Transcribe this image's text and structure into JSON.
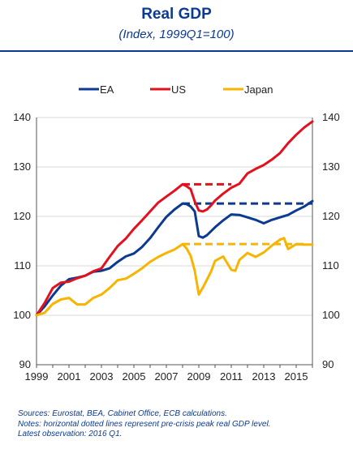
{
  "header": {
    "title": "Real GDP",
    "subtitle": "(Index, 1999Q1=100)"
  },
  "notes": [
    "Sources: Eurostat, BEA, Cabinet Office, ECB calculations.",
    "Notes: horizontal dotted lines represent pre-crisis peak real GDP level.",
    "Latest observation: 2016 Q1."
  ],
  "chart_data": {
    "type": "line",
    "xlim": [
      1999,
      2016.0
    ],
    "ylim": [
      90,
      140
    ],
    "xticks": [
      1999,
      2001,
      2003,
      2005,
      2007,
      2009,
      2011,
      2013,
      2015
    ],
    "yticks": [
      90,
      100,
      110,
      120,
      130,
      140
    ],
    "legend_placement": "top",
    "grid": "horizontal",
    "series": [
      {
        "name": "EA",
        "color": "#0b3a91",
        "x": [
          1999,
          1999.5,
          2000,
          2000.5,
          2001,
          2001.5,
          2002,
          2002.5,
          2003,
          2003.5,
          2004,
          2004.5,
          2005,
          2005.5,
          2006,
          2006.5,
          2007,
          2007.5,
          2008,
          2008.25,
          2008.5,
          2008.75,
          2009,
          2009.25,
          2009.5,
          2009.75,
          2010,
          2010.5,
          2011,
          2011.5,
          2012,
          2012.5,
          2013,
          2013.5,
          2014,
          2014.5,
          2015,
          2015.5,
          2016
        ],
        "y": [
          100,
          101.8,
          104,
          106,
          107.3,
          107.6,
          108,
          108.8,
          109,
          109.5,
          110.8,
          111.9,
          112.5,
          113.8,
          115.6,
          117.8,
          119.9,
          121.4,
          122.6,
          122.5,
          122,
          121,
          116,
          115.7,
          116.2,
          117,
          117.8,
          119.2,
          120.4,
          120.3,
          119.8,
          119.3,
          118.6,
          119.3,
          119.8,
          120.3,
          121.2,
          122,
          123.1
        ],
        "peak": {
          "from": 2008,
          "to": 2016,
          "level": 122.6
        }
      },
      {
        "name": "US",
        "color": "#e3111e",
        "x": [
          1999,
          1999.5,
          2000,
          2000.5,
          2001,
          2001.5,
          2002,
          2002.5,
          2003,
          2003.5,
          2004,
          2004.5,
          2005,
          2005.5,
          2006,
          2006.5,
          2007,
          2007.5,
          2008,
          2008.25,
          2008.5,
          2008.75,
          2009,
          2009.25,
          2009.5,
          2009.75,
          2010,
          2010.5,
          2011,
          2011.5,
          2012,
          2012.5,
          2013,
          2013.5,
          2014,
          2014.5,
          2015,
          2015.5,
          2016
        ],
        "y": [
          100,
          102.5,
          105.5,
          106.6,
          106.8,
          107.5,
          108,
          108.9,
          109.5,
          111.8,
          114,
          115.5,
          117.5,
          119.2,
          121,
          122.8,
          124,
          125.2,
          126.5,
          126.1,
          125.5,
          123,
          121.2,
          121,
          121.4,
          122.2,
          123.2,
          124.6,
          125.8,
          126.6,
          128.7,
          129.6,
          130.4,
          131.5,
          132.8,
          134.8,
          136.5,
          138,
          139.2
        ],
        "peak": {
          "from": 2008,
          "to": 2011,
          "level": 126.5
        }
      },
      {
        "name": "Japan",
        "color": "#f7b500",
        "x": [
          1999,
          1999.5,
          2000,
          2000.5,
          2001,
          2001.5,
          2002,
          2002.5,
          2003,
          2003.5,
          2004,
          2004.5,
          2005,
          2005.5,
          2006,
          2006.5,
          2007,
          2007.5,
          2008,
          2008.25,
          2008.5,
          2008.75,
          2009,
          2009.25,
          2009.5,
          2009.75,
          2010,
          2010.5,
          2011,
          2011.25,
          2011.5,
          2012,
          2012.5,
          2013,
          2013.5,
          2014,
          2014.25,
          2014.5,
          2015,
          2015.5,
          2016
        ],
        "y": [
          100,
          100.5,
          102.3,
          103.2,
          103.5,
          102.2,
          102.2,
          103.5,
          104.2,
          105.5,
          107.1,
          107.4,
          108.4,
          109.5,
          110.8,
          111.8,
          112.6,
          113.3,
          114.4,
          113.5,
          112,
          109,
          104.2,
          105.6,
          107.2,
          108.8,
          111,
          111.9,
          109.2,
          109,
          111.2,
          112.6,
          111.8,
          112.7,
          114.1,
          115.3,
          115.6,
          113.4,
          114.4,
          114.3,
          114.3
        ],
        "peak": {
          "from": 2008,
          "to": 2015.7,
          "level": 114.4
        }
      }
    ]
  }
}
